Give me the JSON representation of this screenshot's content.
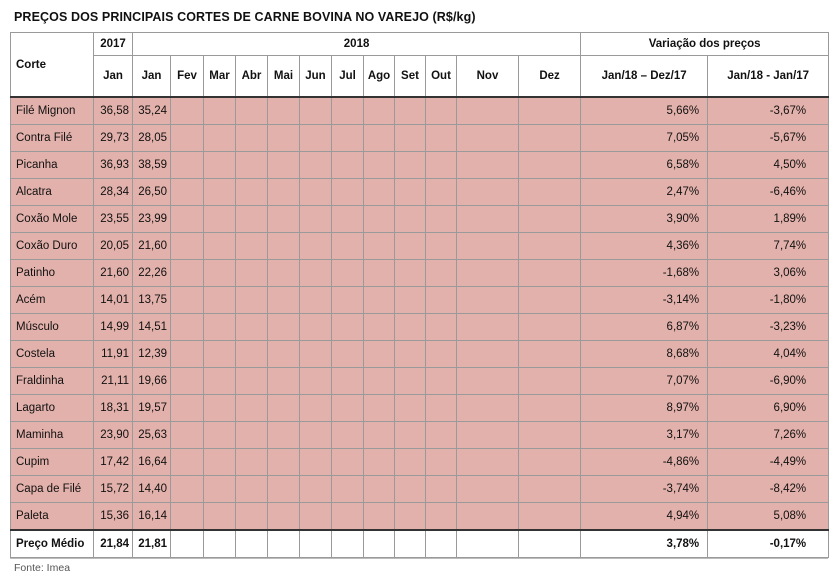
{
  "title": "PREÇOS DOS PRINCIPAIS CORTES DE CARNE BOVINA NO VAREJO (R$/kg)",
  "header": {
    "corte": "Corte",
    "year_2017": "2017",
    "year_2018": "2018",
    "variation": "Variação dos preços",
    "months_2017": [
      "Jan"
    ],
    "months_2018": [
      "Jan",
      "Fev",
      "Mar",
      "Abr",
      "Mai",
      "Jun",
      "Jul",
      "Ago",
      "Set",
      "Out",
      "Nov",
      "Dez"
    ],
    "var_cols": [
      "Jan/18 – Dez/17",
      "Jan/18 - Jan/17"
    ]
  },
  "rows": [
    {
      "corte": "Filé Mignon",
      "jan17": "36,58",
      "jan18": "35,24",
      "var1": "5,66%",
      "var2": "-3,67%"
    },
    {
      "corte": "Contra Filé",
      "jan17": "29,73",
      "jan18": "28,05",
      "var1": "7,05%",
      "var2": "-5,67%"
    },
    {
      "corte": "Picanha",
      "jan17": "36,93",
      "jan18": "38,59",
      "var1": "6,58%",
      "var2": "4,50%"
    },
    {
      "corte": "Alcatra",
      "jan17": "28,34",
      "jan18": "26,50",
      "var1": "2,47%",
      "var2": "-6,46%"
    },
    {
      "corte": "Coxão Mole",
      "jan17": "23,55",
      "jan18": "23,99",
      "var1": "3,90%",
      "var2": "1,89%"
    },
    {
      "corte": "Coxão Duro",
      "jan17": "20,05",
      "jan18": "21,60",
      "var1": "4,36%",
      "var2": "7,74%"
    },
    {
      "corte": "Patinho",
      "jan17": "21,60",
      "jan18": "22,26",
      "var1": "-1,68%",
      "var2": "3,06%"
    },
    {
      "corte": "Acém",
      "jan17": "14,01",
      "jan18": "13,75",
      "var1": "-3,14%",
      "var2": "-1,80%"
    },
    {
      "corte": "Músculo",
      "jan17": "14,99",
      "jan18": "14,51",
      "var1": "6,87%",
      "var2": "-3,23%"
    },
    {
      "corte": "Costela",
      "jan17": "11,91",
      "jan18": "12,39",
      "var1": "8,68%",
      "var2": "4,04%"
    },
    {
      "corte": "Fraldinha",
      "jan17": "21,11",
      "jan18": "19,66",
      "var1": "7,07%",
      "var2": "-6,90%"
    },
    {
      "corte": "Lagarto",
      "jan17": "18,31",
      "jan18": "19,57",
      "var1": "8,97%",
      "var2": "6,90%"
    },
    {
      "corte": "Maminha",
      "jan17": "23,90",
      "jan18": "25,63",
      "var1": "3,17%",
      "var2": "7,26%"
    },
    {
      "corte": "Cupim",
      "jan17": "17,42",
      "jan18": "16,64",
      "var1": "-4,86%",
      "var2": "-4,49%"
    },
    {
      "corte": "Capa de Filé",
      "jan17": "15,72",
      "jan18": "14,40",
      "var1": "-3,74%",
      "var2": "-8,42%"
    },
    {
      "corte": "Paleta",
      "jan17": "15,36",
      "jan18": "16,14",
      "var1": "4,94%",
      "var2": "5,08%"
    }
  ],
  "average": {
    "corte": "Preço Médio",
    "jan17": "21,84",
    "jan18": "21,81",
    "var1": "3,78%",
    "var2": "-0,17%"
  },
  "source": "Fonte: Imea",
  "colors": {
    "cell_fill": "#e3b1ab"
  }
}
